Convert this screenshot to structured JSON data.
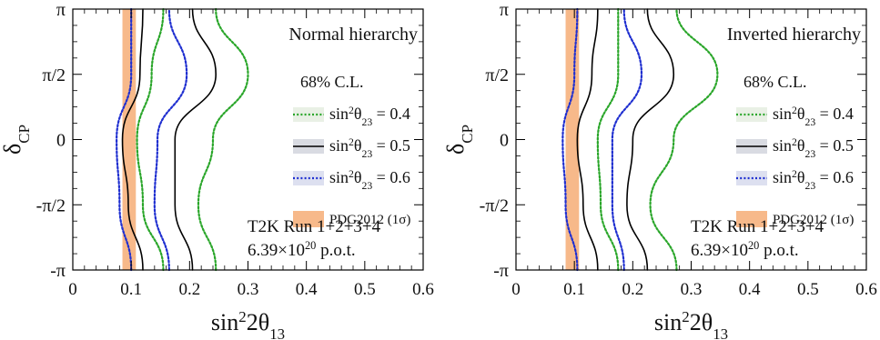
{
  "chart_data": [
    {
      "type": "line",
      "panel_label": "Normal hierarchy",
      "xlabel": "sin",
      "xlabel_sup": "2",
      "xlabel_mid": "2θ",
      "xlabel_sub": "13",
      "ylabel": "δ",
      "ylabel_sub": "CP",
      "xlim": [
        0,
        0.6
      ],
      "ylim_label": [
        "-π",
        "π"
      ],
      "x_ticks": [
        "0",
        "0.1",
        "0.2",
        "0.3",
        "0.4",
        "0.5",
        "0.6"
      ],
      "y_ticks": [
        "-π",
        "-π/2",
        "0",
        "π/2",
        "π"
      ],
      "legend_title": "68% C.L.",
      "legend": [
        {
          "label_pre": "sin",
          "sup": "2",
          "mid": "θ",
          "sub": "23",
          "post": " = 0.4",
          "color": "#2aa62a",
          "style": "dotted"
        },
        {
          "label_pre": "sin",
          "sup": "2",
          "mid": "θ",
          "sub": "23",
          "post": " = 0.5",
          "color": "#000000",
          "style": "solid"
        },
        {
          "label_pre": "sin",
          "sup": "2",
          "mid": "θ",
          "sub": "23",
          "post": " = 0.6",
          "color": "#1f2fd0",
          "style": "dotted"
        }
      ],
      "pdg_label": "PDG2012 (1σ)",
      "pdg_band": [
        0.085,
        0.108
      ],
      "pdg_color": "#f7b98a",
      "annotation": [
        "T2K Run 1+2+3+4",
        "6.39×10^20 p.o.t."
      ],
      "series": [
        {
          "style": "dotted",
          "color": "#2aa62a",
          "contours": [
            {
              "y": [
                -3.1416,
                -1.5708,
                0,
                1.5708,
                3.1416
              ],
              "x": [
                0.155,
                0.12,
                0.11,
                0.135,
                0.155
              ]
            },
            {
              "y": [
                -3.1416,
                -1.5708,
                0,
                1.5708,
                3.1416
              ],
              "x": [
                0.245,
                0.215,
                0.24,
                0.3,
                0.245
              ]
            }
          ]
        },
        {
          "style": "solid",
          "color": "#000000",
          "contours": [
            {
              "y": [
                -3.1416,
                -1.5708,
                0,
                1.5708,
                3.1416
              ],
              "x": [
                0.12,
                0.095,
                0.085,
                0.115,
                0.12
              ]
            },
            {
              "y": [
                -3.1416,
                -1.5708,
                0,
                1.5708,
                3.1416
              ],
              "x": [
                0.205,
                0.175,
                0.175,
                0.245,
                0.205
              ]
            }
          ]
        },
        {
          "style": "dotted",
          "color": "#1f2fd0",
          "contours": [
            {
              "y": [
                -3.1416,
                -1.5708,
                0,
                1.5708,
                3.1416
              ],
              "x": [
                0.1,
                0.08,
                0.075,
                0.1,
                0.1
              ]
            },
            {
              "y": [
                -3.1416,
                -1.5708,
                0,
                1.5708,
                3.1416
              ],
              "x": [
                0.165,
                0.14,
                0.145,
                0.195,
                0.165
              ]
            }
          ]
        }
      ]
    },
    {
      "type": "line",
      "panel_label": "Inverted hierarchy",
      "xlabel": "sin",
      "xlabel_sup": "2",
      "xlabel_mid": "2θ",
      "xlabel_sub": "13",
      "ylabel": "δ",
      "ylabel_sub": "CP",
      "xlim": [
        0,
        0.6
      ],
      "ylim_label": [
        "-π",
        "π"
      ],
      "x_ticks": [
        "0",
        "0.1",
        "0.2",
        "0.3",
        "0.4",
        "0.5",
        "0.6"
      ],
      "y_ticks": [
        "-π",
        "-π/2",
        "0",
        "π/2",
        "π"
      ],
      "legend_title": "68% C.L.",
      "legend": [
        {
          "label_pre": "sin",
          "sup": "2",
          "mid": "θ",
          "sub": "23",
          "post": " = 0.4",
          "color": "#2aa62a",
          "style": "dotted"
        },
        {
          "label_pre": "sin",
          "sup": "2",
          "mid": "θ",
          "sub": "23",
          "post": " = 0.5",
          "color": "#000000",
          "style": "solid"
        },
        {
          "label_pre": "sin",
          "sup": "2",
          "mid": "θ",
          "sub": "23",
          "post": " = 0.6",
          "color": "#1f2fd0",
          "style": "dotted"
        }
      ],
      "pdg_label": "PDG2012 (1σ)",
      "pdg_band": [
        0.085,
        0.108
      ],
      "pdg_color": "#f7b98a",
      "annotation": [
        "T2K Run 1+2+3+4",
        "6.39×10^20 p.o.t."
      ],
      "series": [
        {
          "style": "dotted",
          "color": "#2aa62a",
          "contours": [
            {
              "y": [
                -3.1416,
                -1.5708,
                0,
                1.5708,
                3.1416
              ],
              "x": [
                0.175,
                0.145,
                0.14,
                0.175,
                0.175
              ]
            },
            {
              "y": [
                -3.1416,
                -1.5708,
                0,
                1.5708,
                3.1416
              ],
              "x": [
                0.275,
                0.23,
                0.27,
                0.345,
                0.275
              ]
            }
          ]
        },
        {
          "style": "solid",
          "color": "#000000",
          "contours": [
            {
              "y": [
                -3.1416,
                -1.5708,
                0,
                1.5708,
                3.1416
              ],
              "x": [
                0.14,
                0.115,
                0.105,
                0.13,
                0.14
              ]
            },
            {
              "y": [
                -3.1416,
                -1.5708,
                0,
                1.5708,
                3.1416
              ],
              "x": [
                0.225,
                0.19,
                0.2,
                0.27,
                0.225
              ]
            }
          ]
        },
        {
          "style": "dotted",
          "color": "#1f2fd0",
          "contours": [
            {
              "y": [
                -3.1416,
                -1.5708,
                0,
                1.5708,
                3.1416
              ],
              "x": [
                0.105,
                0.085,
                0.08,
                0.1,
                0.105
              ]
            },
            {
              "y": [
                -3.1416,
                -1.5708,
                0,
                1.5708,
                3.1416
              ],
              "x": [
                0.185,
                0.165,
                0.165,
                0.215,
                0.185
              ]
            }
          ]
        }
      ]
    }
  ]
}
